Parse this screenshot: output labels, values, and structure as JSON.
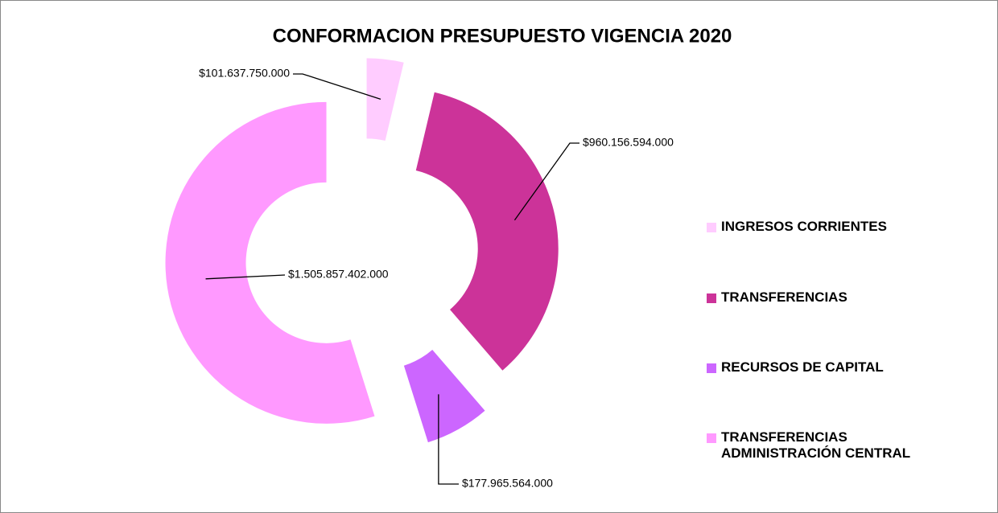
{
  "chart_data": {
    "type": "donut",
    "title": "CONFORMACION PRESUPUESTO VIGENCIA 2020",
    "categories": [
      "INGRESOS CORRIENTES",
      "TRANSFERENCIAS",
      "RECURSOS DE CAPITAL",
      "TRANSFERENCIAS ADMINISTRACIÓN CENTRAL"
    ],
    "values": [
      101637750000,
      960156594000,
      177965564000,
      1505857402000
    ],
    "value_labels": [
      "$101.637.750.000",
      "$960.156.594.000",
      "$177.965.564.000",
      "$1.505.857.402.000"
    ],
    "colors": [
      "#ffccff",
      "#cc3399",
      "#cc66ff",
      "#ff99ff"
    ],
    "legend": "right"
  }
}
